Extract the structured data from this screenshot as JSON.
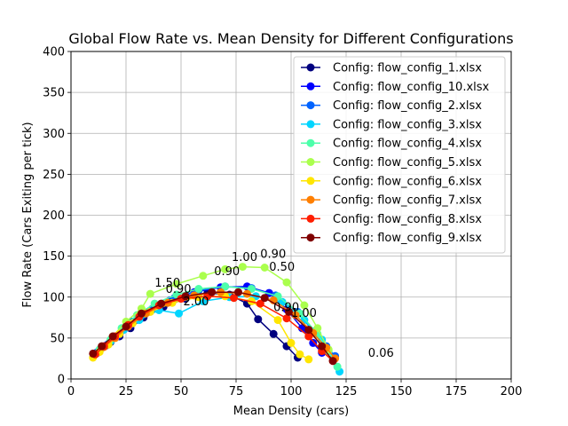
{
  "chart_data": {
    "type": "line",
    "title": "Global Flow Rate vs. Mean Density for Different Configurations",
    "xlabel": "Mean Density (cars)",
    "ylabel": "Flow Rate (Cars Exiting per tick)",
    "xlim": [
      0,
      200
    ],
    "ylim": [
      0,
      400
    ],
    "xticks": [
      0,
      25,
      50,
      75,
      100,
      125,
      150,
      175,
      200
    ],
    "yticks": [
      0,
      50,
      100,
      150,
      200,
      250,
      300,
      350,
      400
    ],
    "grid": true,
    "legend_position": "upper right",
    "series": [
      {
        "name": "Config: flow_config_1.xlsx",
        "color": "#00007f",
        "x": [
          11,
          14,
          18,
          22,
          27,
          33,
          42,
          52,
          62,
          72,
          80,
          85,
          92,
          98,
          103
        ],
        "y": [
          31,
          38,
          45,
          52,
          62,
          75,
          88,
          98,
          105,
          103,
          92,
          73,
          55,
          40,
          26
        ]
      },
      {
        "name": "Config: flow_config_10.xlsx",
        "color": "#0000ff",
        "x": [
          12,
          16,
          21,
          27,
          35,
          45,
          56,
          68,
          80,
          90,
          98,
          105,
          110,
          114
        ],
        "y": [
          32,
          41,
          52,
          66,
          82,
          96,
          106,
          112,
          113,
          105,
          85,
          62,
          44,
          32
        ]
      },
      {
        "name": "Config: flow_config_2.xlsx",
        "color": "#0063ff",
        "x": [
          12,
          17,
          22,
          28,
          37,
          47,
          58,
          70,
          82,
          93,
          103,
          110,
          116,
          120
        ],
        "y": [
          33,
          43,
          55,
          70,
          86,
          99,
          108,
          113,
          111,
          102,
          82,
          58,
          40,
          28
        ]
      },
      {
        "name": "Config: flow_config_3.xlsx",
        "color": "#00d5ff",
        "x": [
          13,
          18,
          24,
          31,
          40,
          49,
          60,
          72,
          84,
          96,
          106,
          114,
          119,
          122
        ],
        "y": [
          34,
          46,
          60,
          72,
          84,
          80,
          95,
          100,
          101,
          94,
          72,
          48,
          25,
          9
        ]
      },
      {
        "name": "Config: flow_config_4.xlsx",
        "color": "#4dffaa",
        "x": [
          13,
          18,
          23,
          30,
          38,
          48,
          58,
          70,
          82,
          94,
          104,
          112,
          117,
          121
        ],
        "y": [
          36,
          48,
          62,
          78,
          92,
          103,
          110,
          113,
          110,
          101,
          80,
          55,
          34,
          15
        ]
      },
      {
        "name": "Config: flow_config_5.xlsx",
        "color": "#aaff4d",
        "x": [
          14,
          19,
          25,
          32,
          36,
          48,
          60,
          70,
          78,
          88,
          98,
          106,
          112,
          117
        ],
        "y": [
          38,
          52,
          70,
          86,
          104,
          116,
          126,
          134,
          137,
          136,
          118,
          90,
          62,
          36
        ]
      },
      {
        "name": "Config: flow_config_6.xlsx",
        "color": "#ffe600",
        "x": [
          10,
          13,
          17,
          22,
          28,
          36,
          46,
          58,
          70,
          82,
          94,
          100,
          104,
          108
        ],
        "y": [
          26,
          33,
          42,
          55,
          68,
          82,
          93,
          100,
          101,
          95,
          72,
          44,
          30,
          24
        ]
      },
      {
        "name": "Config: flow_config_7.xlsx",
        "color": "#ff7f00",
        "x": [
          11,
          15,
          20,
          26,
          34,
          44,
          56,
          68,
          80,
          92,
          102,
          110,
          116,
          120
        ],
        "y": [
          30,
          39,
          50,
          64,
          80,
          93,
          102,
          106,
          104,
          96,
          78,
          56,
          38,
          25
        ]
      },
      {
        "name": "Config: flow_config_8.xlsx",
        "color": "#ff1e00",
        "x": [
          11,
          15,
          20,
          26,
          31,
          40,
          50,
          62,
          74,
          86,
          98,
          108,
          114,
          119
        ],
        "y": [
          30,
          40,
          52,
          66,
          76,
          90,
          98,
          101,
          99,
          92,
          74,
          52,
          34,
          22
        ]
      },
      {
        "name": "Config: flow_config_9.xlsx",
        "color": "#7f0000",
        "x": [
          10,
          14,
          19,
          25,
          32,
          41,
          52,
          64,
          76,
          88,
          99,
          108,
          114,
          119
        ],
        "y": [
          31,
          40,
          52,
          64,
          80,
          92,
          101,
          106,
          106,
          99,
          82,
          60,
          40,
          22
        ]
      }
    ],
    "annotations": [
      {
        "text": "1.00",
        "x": 73,
        "y": 144
      },
      {
        "text": "0.90",
        "x": 86,
        "y": 148
      },
      {
        "text": "0.90",
        "x": 65,
        "y": 127
      },
      {
        "text": "0.50",
        "x": 90,
        "y": 132
      },
      {
        "text": "1.50",
        "x": 38,
        "y": 113
      },
      {
        "text": "2.00",
        "x": 51,
        "y": 90
      },
      {
        "text": "0.90",
        "x": 92,
        "y": 83
      },
      {
        "text": "0.06",
        "x": 135,
        "y": 27
      },
      {
        "text": "0.90",
        "x": 43,
        "y": 105
      },
      {
        "text": "1.00",
        "x": 100,
        "y": 76
      }
    ]
  }
}
